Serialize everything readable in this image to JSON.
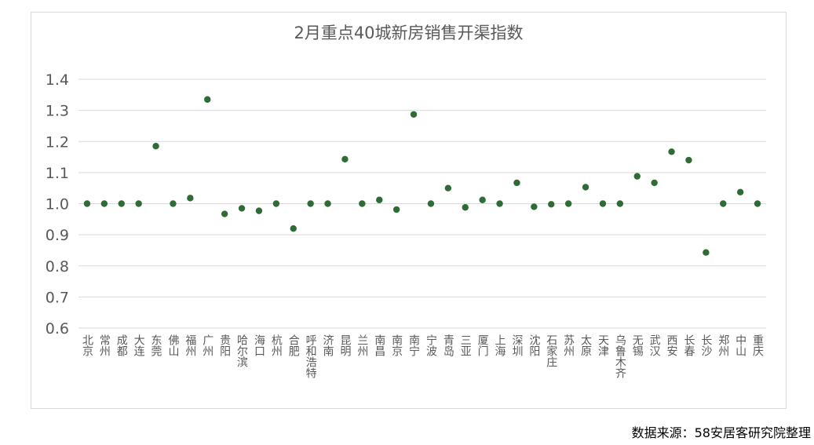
{
  "chart_data": {
    "type": "scatter",
    "title": "2月重点40城新房销售开渠指数",
    "xlabel": "",
    "ylabel": "",
    "ylim": [
      0.6,
      1.4
    ],
    "yticks": [
      "0.6",
      "0.7",
      "0.8",
      "0.9",
      "1.0",
      "1.1",
      "1.2",
      "1.3",
      "1.4"
    ],
    "grid": true,
    "marker_color": "#2e6b35",
    "categories": [
      "北京",
      "常州",
      "成都",
      "大连",
      "东莞",
      "佛山",
      "福州",
      "广州",
      "贵阳",
      "哈尔滨",
      "海口",
      "杭州",
      "合肥",
      "呼和浩特",
      "济南",
      "昆明",
      "兰州",
      "南昌",
      "南京",
      "南宁",
      "宁波",
      "青岛",
      "三亚",
      "厦门",
      "上海",
      "深圳",
      "沈阳",
      "石家庄",
      "苏州",
      "太原",
      "天津",
      "乌鲁木齐",
      "无锡",
      "武汉",
      "西安",
      "长春",
      "长沙",
      "郑州",
      "中山",
      "重庆"
    ],
    "values": [
      1.0,
      1.0,
      1.0,
      1.0,
      1.185,
      1.0,
      1.018,
      1.335,
      0.967,
      0.985,
      0.977,
      1.0,
      0.92,
      1.0,
      1.0,
      1.143,
      1.0,
      1.012,
      0.981,
      1.287,
      1.0,
      1.05,
      0.988,
      1.012,
      1.0,
      1.067,
      0.99,
      0.998,
      1.0,
      1.053,
      1.0,
      1.0,
      1.088,
      1.067,
      1.167,
      1.14,
      0.843,
      1.0,
      1.037,
      1.0
    ]
  },
  "source_note": "数据来源：58安居客研究院整理"
}
